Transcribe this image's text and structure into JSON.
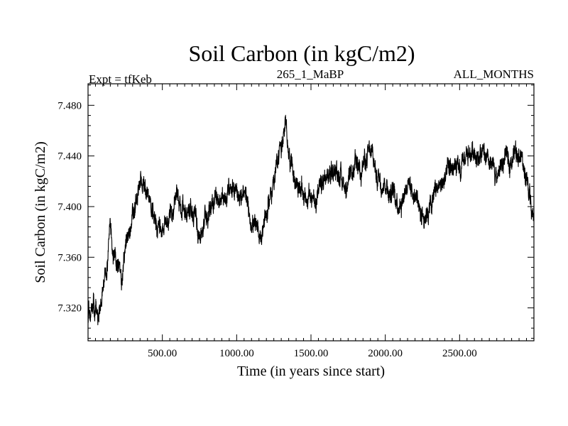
{
  "chart_data": {
    "type": "line",
    "title": "Soil Carbon (in kgC/m2)",
    "header_left": "Expt = tfKeb",
    "header_center": "265_1_MaBP",
    "header_right": "ALL_MONTHS",
    "xlabel": "Time (in years since start)",
    "ylabel": "Soil Carbon (in kgC/m2)",
    "xlim": [
      0,
      3000
    ],
    "ylim": [
      7.294,
      7.497
    ],
    "xticks": [
      500,
      1000,
      1500,
      2000,
      2500
    ],
    "xtick_labels": [
      "500.00",
      "1000.00",
      "1500.00",
      "2000.00",
      "2500.00"
    ],
    "yticks": [
      7.32,
      7.36,
      7.4,
      7.44,
      7.48
    ],
    "ytick_labels": [
      "7.320",
      "7.360",
      "7.400",
      "7.440",
      "7.480"
    ],
    "grid": false,
    "series": [
      {
        "color": "#000000",
        "x": [
          0,
          40,
          80,
          120,
          150,
          180,
          220,
          260,
          300,
          330,
          360,
          400,
          440,
          480,
          520,
          560,
          600,
          640,
          680,
          720,
          760,
          800,
          850,
          900,
          950,
          1000,
          1050,
          1100,
          1150,
          1200,
          1250,
          1300,
          1330,
          1360,
          1400,
          1450,
          1500,
          1550,
          1600,
          1650,
          1700,
          1750,
          1800,
          1850,
          1900,
          1950,
          2000,
          2050,
          2100,
          2150,
          2200,
          2250,
          2300,
          2350,
          2400,
          2450,
          2500,
          2550,
          2600,
          2650,
          2700,
          2750,
          2800,
          2850,
          2900,
          2950,
          3000
        ],
        "y": [
          7.315,
          7.325,
          7.318,
          7.35,
          7.38,
          7.36,
          7.345,
          7.37,
          7.39,
          7.405,
          7.42,
          7.41,
          7.39,
          7.385,
          7.38,
          7.395,
          7.41,
          7.4,
          7.395,
          7.39,
          7.38,
          7.395,
          7.41,
          7.405,
          7.41,
          7.415,
          7.405,
          7.39,
          7.375,
          7.395,
          7.42,
          7.45,
          7.46,
          7.44,
          7.42,
          7.41,
          7.405,
          7.41,
          7.42,
          7.43,
          7.425,
          7.415,
          7.43,
          7.435,
          7.44,
          7.425,
          7.42,
          7.41,
          7.405,
          7.42,
          7.41,
          7.395,
          7.4,
          7.415,
          7.42,
          7.43,
          7.425,
          7.44,
          7.445,
          7.44,
          7.43,
          7.425,
          7.435,
          7.44,
          7.445,
          7.42,
          7.39
        ]
      }
    ]
  }
}
